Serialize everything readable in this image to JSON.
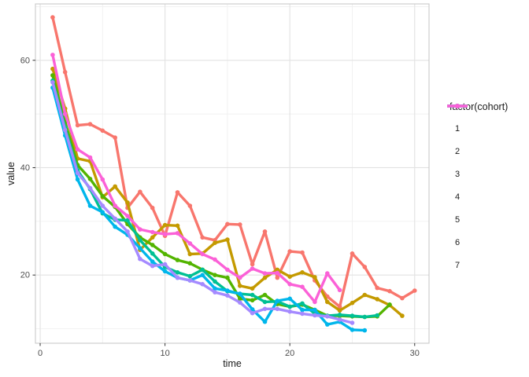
{
  "chart_data": {
    "type": "line",
    "title": "",
    "xlabel": "time",
    "ylabel": "value",
    "legend_title": "factor(cohort)",
    "legend_position": "right",
    "grid": true,
    "x_ticks": [
      0,
      10,
      20,
      30
    ],
    "x_minor_ticks": [
      5,
      15,
      25
    ],
    "y_ticks": [
      20,
      40,
      60
    ],
    "y_minor_ticks": [
      10,
      30,
      50,
      70
    ],
    "xlim": [
      -0.38,
      31.15
    ],
    "ylim": [
      7.3,
      70.5
    ],
    "series": [
      {
        "name": "1",
        "color": "#F8766D",
        "x": [
          1,
          2,
          3,
          4,
          5,
          6,
          7,
          8,
          9,
          10,
          11,
          12,
          13,
          14,
          15,
          16,
          17,
          18,
          19,
          20,
          21,
          22,
          23,
          24,
          25,
          26,
          27,
          28,
          29,
          30
        ],
        "values": [
          68,
          57.8,
          47.9,
          48.1,
          46.9,
          45.6,
          32.5,
          35.5,
          32.5,
          27.3,
          35.4,
          32.9,
          27,
          26.5,
          29.5,
          29.4,
          22,
          28.1,
          19.5,
          24.4,
          24.2,
          19,
          16,
          14.1,
          24,
          21.5,
          17.6,
          17,
          15.7,
          17.1
        ]
      },
      {
        "name": "2",
        "color": "#C49A00",
        "x": [
          1,
          2,
          3,
          4,
          5,
          6,
          7,
          8,
          9,
          10,
          11,
          12,
          13,
          14,
          15,
          16,
          17,
          18,
          19,
          20,
          21,
          22,
          23,
          24,
          25,
          26,
          27,
          28,
          29
        ],
        "values": [
          58.4,
          51,
          41.7,
          41.2,
          34.5,
          36.5,
          33.5,
          24.7,
          27,
          29.3,
          29.2,
          23.9,
          24,
          26,
          26.6,
          18,
          17.5,
          19.5,
          21,
          19.7,
          20.5,
          19.6,
          15,
          13.4,
          14.8,
          16.3,
          15.5,
          14.4,
          12.4
        ]
      },
      {
        "name": "3",
        "color": "#53B400",
        "x": [
          1,
          2,
          3,
          4,
          5,
          6,
          7,
          8,
          9,
          10,
          11,
          12,
          13,
          14,
          15,
          16,
          17,
          18,
          19,
          20,
          21,
          22,
          23,
          24,
          25,
          26,
          27,
          28
        ],
        "values": [
          57.2,
          48.5,
          40.5,
          37.9,
          34.7,
          32.7,
          29.5,
          27,
          25.6,
          23.9,
          22.8,
          22.2,
          21,
          20,
          19.5,
          15.6,
          15.3,
          16.3,
          14.6,
          14.1,
          14.5,
          13.5,
          12.4,
          12.4,
          12.3,
          12.2,
          12.3,
          14.5
        ]
      },
      {
        "name": "4",
        "color": "#00C094",
        "x": [
          1,
          2,
          3,
          4,
          5,
          6,
          7,
          8,
          9,
          10,
          11,
          12,
          13,
          14,
          15,
          16,
          17,
          18,
          19,
          20,
          21,
          22,
          23,
          24,
          25,
          26,
          27
        ],
        "values": [
          56.2,
          47.5,
          39.5,
          36,
          31.5,
          30.3,
          30.2,
          26.5,
          24,
          21.5,
          20.5,
          19.8,
          21,
          18.8,
          17,
          16.5,
          16.3,
          15,
          15.1,
          14.1,
          14.7,
          12.8,
          12.4,
          12.6,
          12.4,
          12.2,
          12.5
        ]
      },
      {
        "name": "5",
        "color": "#00B6EB",
        "x": [
          1,
          2,
          3,
          4,
          5,
          6,
          7,
          8,
          9,
          10,
          11,
          12,
          13,
          14,
          15,
          16,
          17,
          18,
          19,
          20,
          21,
          22,
          23,
          24,
          25,
          26
        ],
        "values": [
          54.9,
          46,
          37.8,
          32.9,
          31.7,
          29,
          27.5,
          25,
          22.5,
          20.7,
          19.5,
          19,
          20,
          17.5,
          17.1,
          16.5,
          13.6,
          11.3,
          15.2,
          15.6,
          13.5,
          13.5,
          10.8,
          11.3,
          9.8,
          9.7
        ]
      },
      {
        "name": "6",
        "color": "#A58AFF",
        "x": [
          1,
          2,
          3,
          4,
          5,
          6,
          7,
          8,
          9,
          10,
          11,
          12,
          13,
          14,
          15,
          16,
          17,
          18,
          19,
          20,
          21,
          22,
          23,
          24,
          25
        ],
        "values": [
          55.9,
          47,
          39,
          36.2,
          32.9,
          30.5,
          28.1,
          23,
          21.7,
          22,
          19.5,
          19,
          18.3,
          16.8,
          16.2,
          14.9,
          12.9,
          13.7,
          13.7,
          13.2,
          12.8,
          12.5,
          12.3,
          11.7,
          11.1
        ]
      },
      {
        "name": "7",
        "color": "#FB61D7",
        "x": [
          1,
          2,
          3,
          4,
          5,
          6,
          7,
          8,
          9,
          10,
          11,
          12,
          13,
          14,
          15,
          16,
          17,
          18,
          19,
          20,
          21,
          22,
          23,
          24
        ],
        "values": [
          61,
          50,
          43.4,
          41.9,
          37.8,
          32.9,
          31,
          28.5,
          28,
          27.6,
          27.8,
          25.9,
          23.9,
          22.9,
          21,
          19.5,
          21.2,
          20.3,
          20.4,
          18.3,
          17.8,
          15,
          20.3,
          17.2
        ]
      }
    ]
  },
  "colors": {
    "panel_background": "#FFFFFF",
    "panel_border": "#C9C9C9",
    "grid_major": "#E2E2E2",
    "grid_minor": "#F0F0F0",
    "tick_mark": "#333333",
    "tick_label": "#4D4D4D",
    "axis_title": "#1A1A1A",
    "legend_text": "#1A1A1A"
  }
}
